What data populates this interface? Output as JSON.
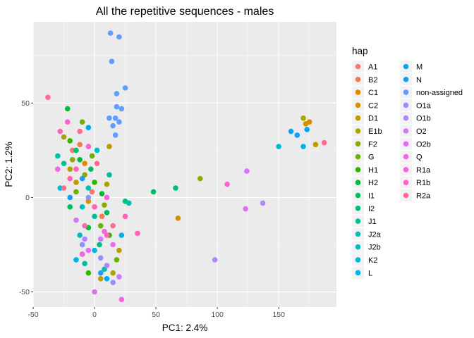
{
  "chart_data": {
    "type": "scatter",
    "title": "All the repetitive sequences - males",
    "xlabel": "PC1: 2.4%",
    "ylabel": "PC2: 1.2%",
    "xlim": [
      -50,
      197
    ],
    "ylim": [
      -58,
      93
    ],
    "x_ticks": [
      -50,
      0,
      50,
      100,
      150
    ],
    "y_ticks": [
      -50,
      0,
      50
    ],
    "x_tick_labels": [
      "-50",
      "0",
      "50",
      "100",
      "150"
    ],
    "y_tick_labels": [
      "-50",
      "0",
      "50"
    ],
    "grid": true,
    "legend_title": "hap",
    "legend_position": "right",
    "series": [
      {
        "name": "A1",
        "color": "#F8766D",
        "points": [
          [
            -18,
            25
          ],
          [
            -2,
            3
          ]
        ]
      },
      {
        "name": "B2",
        "color": "#F07E4A",
        "points": [
          [
            -12,
            28
          ],
          [
            6,
            -10
          ]
        ]
      },
      {
        "name": "C1",
        "color": "#E38900",
        "points": [
          [
            175,
            40
          ],
          [
            -8,
            18
          ]
        ]
      },
      {
        "name": "C2",
        "color": "#D39200",
        "points": [
          [
            68,
            -11
          ],
          [
            172,
            39
          ],
          [
            -5,
            -2
          ]
        ]
      },
      {
        "name": "D1",
        "color": "#C09B00",
        "points": [
          [
            12,
            27
          ],
          [
            -15,
            8
          ],
          [
            20,
            -28
          ],
          [
            180,
            28
          ],
          [
            5,
            -43
          ]
        ]
      },
      {
        "name": "E1b",
        "color": "#A9A400",
        "points": [
          [
            170,
            42
          ],
          [
            -20,
            15
          ],
          [
            10,
            7
          ],
          [
            -10,
            -30
          ],
          [
            15,
            -40
          ],
          [
            -25,
            32
          ]
        ]
      },
      {
        "name": "F2",
        "color": "#8EAB00",
        "points": [
          [
            86,
            10
          ],
          [
            -8,
            12
          ],
          [
            8,
            -4
          ],
          [
            -18,
            20
          ]
        ]
      },
      {
        "name": "G",
        "color": "#6BB100",
        "points": [
          [
            -10,
            40
          ],
          [
            5,
            -15
          ],
          [
            -15,
            3
          ],
          [
            18,
            -33
          ],
          [
            -2,
            22
          ]
        ]
      },
      {
        "name": "H1",
        "color": "#31B600",
        "points": [
          [
            -20,
            30
          ],
          [
            0,
            8
          ],
          [
            12,
            -20
          ],
          [
            -5,
            -40
          ]
        ]
      },
      {
        "name": "H2",
        "color": "#00BA38",
        "points": [
          [
            -22,
            47
          ],
          [
            -12,
            20
          ],
          [
            6,
            2
          ],
          [
            -5,
            -16
          ]
        ]
      },
      {
        "name": "I1",
        "color": "#00BD5F",
        "points": [
          [
            48,
            3
          ],
          [
            -3,
            15
          ],
          [
            10,
            -8
          ],
          [
            -20,
            -5
          ]
        ]
      },
      {
        "name": "I2",
        "color": "#00BF7D",
        "points": [
          [
            66,
            5
          ],
          [
            -15,
            25
          ],
          [
            4,
            -25
          ],
          [
            25,
            -2
          ]
        ]
      },
      {
        "name": "J1",
        "color": "#00C097",
        "points": [
          [
            -25,
            18
          ],
          [
            0,
            -10
          ],
          [
            12,
            12
          ],
          [
            -8,
            -35
          ]
        ]
      },
      {
        "name": "J2a",
        "color": "#00C0AF",
        "points": [
          [
            -30,
            22
          ],
          [
            -5,
            5
          ],
          [
            28,
            -3
          ],
          [
            8,
            -38
          ]
        ]
      },
      {
        "name": "J2b",
        "color": "#00BDC4",
        "points": [
          [
            -10,
            -5
          ],
          [
            2,
            25
          ],
          [
            -12,
            -20
          ]
        ]
      },
      {
        "name": "K2",
        "color": "#00B8D7",
        "points": [
          [
            150,
            27
          ],
          [
            -28,
            5
          ],
          [
            0,
            -28
          ]
        ]
      },
      {
        "name": "L",
        "color": "#00B2E7",
        "points": [
          [
            170,
            27
          ],
          [
            22,
            -20
          ],
          [
            -15,
            -33
          ]
        ]
      },
      {
        "name": "M",
        "color": "#00A8F3",
        "points": [
          [
            160,
            35
          ],
          [
            173,
            36
          ],
          [
            -5,
            37
          ],
          [
            10,
            -43
          ]
        ]
      },
      {
        "name": "N",
        "color": "#149CFB",
        "points": [
          [
            165,
            33
          ],
          [
            -20,
            0
          ],
          [
            5,
            -40
          ],
          [
            -10,
            10
          ]
        ]
      },
      {
        "name": "non-assigned",
        "color": "#619CFF",
        "points": [
          [
            13,
            87
          ],
          [
            20,
            85
          ],
          [
            14,
            72
          ],
          [
            25,
            58
          ],
          [
            18,
            48
          ],
          [
            22,
            47
          ],
          [
            17,
            42
          ],
          [
            15,
            38
          ],
          [
            17,
            33
          ],
          [
            12,
            42
          ],
          [
            20,
            40
          ],
          [
            18,
            55
          ]
        ]
      },
      {
        "name": "O1a",
        "color": "#8F91FF",
        "points": [
          [
            -10,
            -25
          ],
          [
            5,
            -32
          ],
          [
            15,
            -45
          ],
          [
            -5,
            0
          ]
        ]
      },
      {
        "name": "O1b",
        "color": "#B385FF",
        "points": [
          [
            98,
            -33
          ],
          [
            137,
            -3
          ],
          [
            -8,
            -22
          ],
          [
            10,
            -36
          ]
        ]
      },
      {
        "name": "O2",
        "color": "#CF78FF",
        "points": [
          [
            124,
            14
          ],
          [
            -15,
            -12
          ],
          [
            5,
            -22
          ],
          [
            20,
            -42
          ]
        ]
      },
      {
        "name": "O2b",
        "color": "#E46DF6",
        "points": [
          [
            123,
            -6
          ],
          [
            -5,
            -28
          ],
          [
            15,
            -25
          ],
          [
            0,
            -50
          ]
        ]
      },
      {
        "name": "Q",
        "color": "#F365E6",
        "points": [
          [
            -30,
            15
          ],
          [
            22,
            -54
          ],
          [
            -10,
            -30
          ],
          [
            8,
            -18
          ]
        ]
      },
      {
        "name": "R1a",
        "color": "#FC61D5",
        "points": [
          [
            108,
            7
          ],
          [
            -22,
            40
          ],
          [
            -5,
            27
          ],
          [
            10,
            0
          ]
        ]
      },
      {
        "name": "R1b",
        "color": "#FF62BC",
        "points": [
          [
            35,
            -19
          ],
          [
            -28,
            35
          ],
          [
            -15,
            15
          ],
          [
            0,
            -5
          ],
          [
            10,
            -20
          ],
          [
            25,
            -10
          ],
          [
            -8,
            -15
          ],
          [
            -20,
            10
          ]
        ]
      },
      {
        "name": "R2a",
        "color": "#FF6C91",
        "points": [
          [
            187,
            29
          ],
          [
            -38,
            53
          ],
          [
            -12,
            35
          ],
          [
            2,
            18
          ],
          [
            -25,
            5
          ],
          [
            15,
            -15
          ]
        ]
      }
    ]
  }
}
